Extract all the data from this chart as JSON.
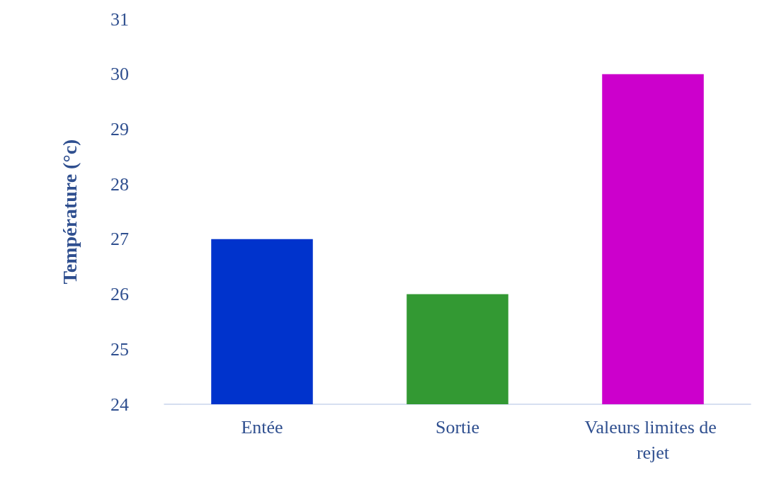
{
  "chart_data": {
    "type": "bar",
    "ylabel": "Température (°c)",
    "categories": [
      "Entée",
      "Sortie",
      "Valeurs limites de rejet"
    ],
    "values": [
      27,
      26,
      30
    ],
    "colors": [
      "#0033cc",
      "#339933",
      "#cc00cc"
    ],
    "ylim": [
      24,
      31
    ],
    "yticks": [
      24,
      25,
      26,
      27,
      28,
      29,
      30,
      31
    ]
  }
}
